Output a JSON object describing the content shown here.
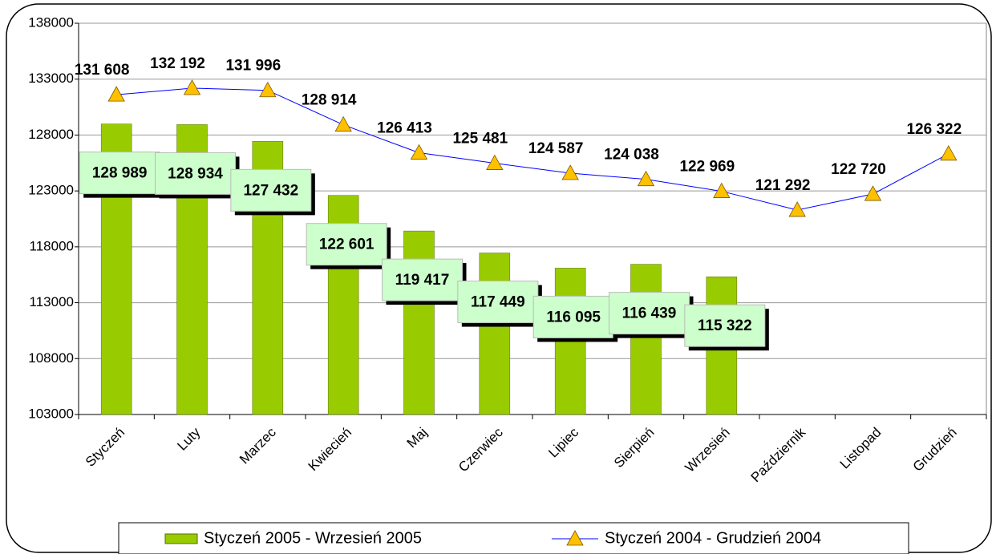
{
  "chart_data": {
    "type": "bar",
    "categories": [
      "Styczeń",
      "Luty",
      "Marzec",
      "Kwiecień",
      "Maj",
      "Czerwiec",
      "Lipiec",
      "Sierpień",
      "Wrzesień",
      "Październik",
      "Listopad",
      "Grudzień"
    ],
    "series": [
      {
        "name": "Styczeń 2005 - Wrzesień 2005",
        "type": "bar",
        "color": "#99cc00",
        "values": [
          128989,
          128934,
          127432,
          122601,
          119417,
          117449,
          116095,
          116439,
          115322,
          null,
          null,
          null
        ],
        "value_labels": [
          "128 989",
          "128 934",
          "127 432",
          "122 601",
          "119 417",
          "117 449",
          "116 095",
          "116 439",
          "115 322",
          null,
          null,
          null
        ]
      },
      {
        "name": "Styczeń 2004 - Grudzień 2004",
        "type": "line",
        "color": "#0000ff",
        "marker_color": "#ffc000",
        "values": [
          131608,
          132192,
          131996,
          128914,
          126413,
          125481,
          124587,
          124038,
          122969,
          121292,
          122720,
          126322
        ],
        "value_labels": [
          "131 608",
          "132 192",
          "131 996",
          "128 914",
          "126 413",
          "125 481",
          "124 587",
          "124 038",
          "122 969",
          "121 292",
          "122 720",
          "126 322"
        ]
      }
    ],
    "ylim": [
      103000,
      138000
    ],
    "yticks": [
      103000,
      108000,
      113000,
      118000,
      123000,
      128000,
      133000,
      138000
    ],
    "grid": true,
    "legend": "bottom"
  }
}
